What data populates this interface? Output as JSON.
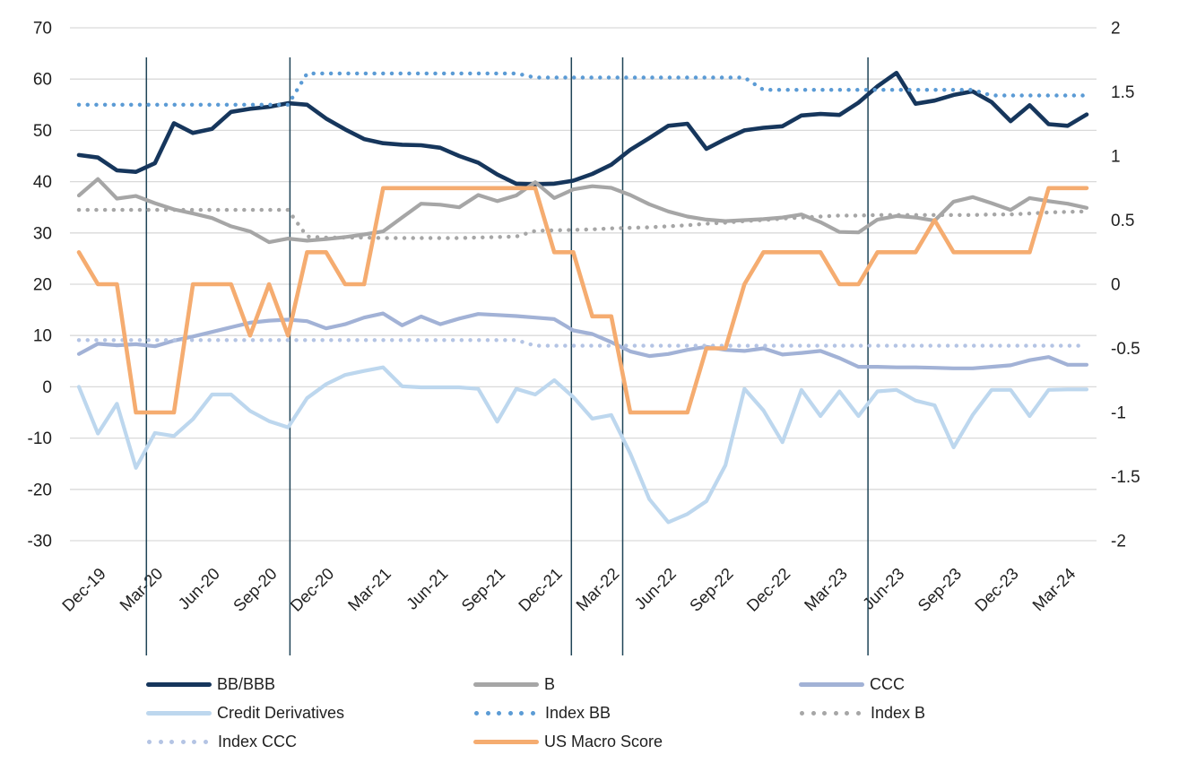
{
  "chart_data": {
    "type": "line",
    "title": "",
    "xlabel": "",
    "ylabel": "",
    "grid": "horizontal",
    "legend_position": "bottom",
    "left_axis": {
      "min": -30,
      "max": 70,
      "ticks": [
        70,
        60,
        50,
        40,
        30,
        20,
        10,
        0,
        -10,
        -20,
        -30
      ]
    },
    "right_axis": {
      "min": -2,
      "max": 2,
      "ticks": [
        2,
        1.5,
        1,
        0.5,
        0,
        -0.5,
        -1,
        -1.5,
        -2
      ]
    },
    "x_tick_every": 3,
    "months": [
      "Dec-19",
      "Jan-20",
      "Feb-20",
      "Mar-20",
      "Apr-20",
      "May-20",
      "Jun-20",
      "Jul-20",
      "Aug-20",
      "Sep-20",
      "Oct-20",
      "Nov-20",
      "Dec-20",
      "Jan-21",
      "Feb-21",
      "Mar-21",
      "Apr-21",
      "May-21",
      "Jun-21",
      "Jul-21",
      "Aug-21",
      "Sep-21",
      "Oct-21",
      "Nov-21",
      "Dec-21",
      "Jan-22",
      "Feb-22",
      "Mar-22",
      "Apr-22",
      "May-22",
      "Jun-22",
      "Jul-22",
      "Aug-22",
      "Sep-22",
      "Oct-22",
      "Nov-22",
      "Dec-22",
      "Jan-23",
      "Feb-23",
      "Mar-23",
      "Apr-23",
      "May-23",
      "Jun-23",
      "Jul-23",
      "Aug-23",
      "Sep-23",
      "Oct-23",
      "Nov-23",
      "Dec-23",
      "Jan-24",
      "Feb-24",
      "Mar-24",
      "Apr-24",
      "May-24"
    ],
    "vertical_reference_lines": [
      3.55,
      11.1,
      25.9,
      28.6,
      41.5
    ],
    "colors": {
      "grid": "#d9d9d9",
      "vline": "#1f4457",
      "text": "#1f1f1f",
      "background": "#ffffff"
    },
    "series": [
      {
        "key": "bb_bbb",
        "name": "BB/BBB",
        "color": "#16365c",
        "style": "solid",
        "width": 4.6,
        "axis": "left",
        "values": [
          45.2,
          44.7,
          42.2,
          41.9,
          43.6,
          51.4,
          49.5,
          50.3,
          53.6,
          54.2,
          54.6,
          55.3,
          55.0,
          52.3,
          50.2,
          48.3,
          47.5,
          47.2,
          47.1,
          46.6,
          45.0,
          43.7,
          41.4,
          39.6,
          39.5,
          39.6,
          40.2,
          41.5,
          43.3,
          46.2,
          48.5,
          50.9,
          51.3,
          46.4,
          48.3,
          50.0,
          50.5,
          50.8,
          52.9,
          53.2,
          53.0,
          55.4,
          58.6,
          61.2,
          55.2,
          55.8,
          56.9,
          57.6,
          55.5,
          51.8,
          54.9,
          51.2,
          50.9,
          53.1
        ]
      },
      {
        "key": "b",
        "name": "B",
        "color": "#a6a6a6",
        "style": "solid",
        "width": 4.2,
        "axis": "left",
        "values": [
          37.3,
          40.5,
          36.7,
          37.2,
          35.8,
          34.6,
          33.8,
          32.9,
          31.3,
          30.3,
          28.2,
          28.9,
          28.5,
          28.8,
          29.2,
          29.7,
          30.3,
          33.0,
          35.7,
          35.5,
          35.0,
          37.4,
          36.2,
          37.3,
          39.9,
          36.8,
          38.5,
          39.1,
          38.8,
          37.4,
          35.6,
          34.2,
          33.2,
          32.6,
          32.3,
          32.5,
          32.7,
          33.0,
          33.6,
          32.1,
          30.2,
          30.1,
          32.6,
          33.3,
          33.0,
          32.4,
          36.1,
          37.0,
          35.8,
          34.5,
          36.8,
          36.2,
          35.7,
          34.9
        ]
      },
      {
        "key": "ccc",
        "name": "CCC",
        "color": "#a2b2d6",
        "style": "solid",
        "width": 4.2,
        "axis": "left",
        "values": [
          6.4,
          8.4,
          8.1,
          8.3,
          7.9,
          9.0,
          9.8,
          10.7,
          11.6,
          12.5,
          12.9,
          13.1,
          12.8,
          11.4,
          12.2,
          13.5,
          14.3,
          12.0,
          13.7,
          12.2,
          13.3,
          14.2,
          14.0,
          13.8,
          13.5,
          13.2,
          11.0,
          10.3,
          8.7,
          6.9,
          6.0,
          6.4,
          7.2,
          7.8,
          7.2,
          7.0,
          7.5,
          6.3,
          6.6,
          7.0,
          5.6,
          3.9,
          3.9,
          3.8,
          3.8,
          3.7,
          3.6,
          3.6,
          3.9,
          4.2,
          5.2,
          5.8,
          4.3,
          4.3
        ]
      },
      {
        "key": "credit_derivatives",
        "name": "Credit Derivatives",
        "color": "#bdd7ee",
        "style": "solid",
        "width": 4.2,
        "axis": "left",
        "values": [
          0.0,
          -9.1,
          -3.3,
          -15.8,
          -9.0,
          -9.6,
          -6.3,
          -1.5,
          -1.5,
          -4.7,
          -6.7,
          -7.9,
          -2.2,
          0.5,
          2.3,
          3.1,
          3.8,
          0.1,
          -0.1,
          -0.1,
          -0.1,
          -0.4,
          -6.8,
          -0.4,
          -1.5,
          1.3,
          -2.0,
          -6.2,
          -5.5,
          -13.0,
          -21.9,
          -26.4,
          -24.8,
          -22.3,
          -15.3,
          -0.4,
          -4.6,
          -10.8,
          -0.6,
          -5.7,
          -0.9,
          -5.7,
          -0.9,
          -0.6,
          -2.7,
          -3.6,
          -11.8,
          -5.5,
          -0.6,
          -0.6,
          -5.7,
          -0.6,
          -0.5,
          -0.5
        ]
      },
      {
        "key": "index_bb",
        "name": "Index BB",
        "color": "#5b9bd5",
        "style": "dotted",
        "width": 4.4,
        "axis": "left",
        "values": [
          55,
          55,
          55,
          55,
          55,
          55,
          55,
          55,
          55,
          55,
          55,
          55,
          61.1,
          61.1,
          61.1,
          61.1,
          61.1,
          61.1,
          61.1,
          61.1,
          61.1,
          61.1,
          61.1,
          61.1,
          60.3,
          60.3,
          60.3,
          60.3,
          60.3,
          60.3,
          60.3,
          60.3,
          60.3,
          60.3,
          60.3,
          60.3,
          57.9,
          57.9,
          57.9,
          57.9,
          57.9,
          57.9,
          57.9,
          57.9,
          57.9,
          57.9,
          57.9,
          57.9,
          56.8,
          56.8,
          56.8,
          56.8,
          56.8,
          56.8
        ]
      },
      {
        "key": "index_b",
        "name": "Index B",
        "color": "#a6a6a6",
        "style": "dotted",
        "width": 4.4,
        "axis": "left",
        "values": [
          34.5,
          34.5,
          34.5,
          34.5,
          34.5,
          34.5,
          34.5,
          34.5,
          34.5,
          34.5,
          34.5,
          34.5,
          29.3,
          29.1,
          29.1,
          29.1,
          29.0,
          29.0,
          29.0,
          29.0,
          29.0,
          29.1,
          29.2,
          29.3,
          30.4,
          30.5,
          30.6,
          30.7,
          30.9,
          31.0,
          31.1,
          31.3,
          31.5,
          31.8,
          32.0,
          32.3,
          32.5,
          32.8,
          33.0,
          33.2,
          33.4,
          33.4,
          33.5,
          33.5,
          33.5,
          33.5,
          33.5,
          33.5,
          33.6,
          33.6,
          33.8,
          34.0,
          34.1,
          34.2
        ]
      },
      {
        "key": "index_ccc",
        "name": "Index CCC",
        "color": "#b4c4e4",
        "style": "dotted",
        "width": 4.4,
        "axis": "left",
        "values": [
          9.1,
          9.1,
          9.1,
          9.1,
          9.1,
          9.1,
          9.1,
          9.1,
          9.1,
          9.1,
          9.1,
          9.1,
          9.1,
          9.1,
          9.1,
          9.1,
          9.1,
          9.1,
          9.1,
          9.1,
          9.1,
          9.1,
          9.1,
          9.1,
          8.0,
          8.0,
          8.0,
          8.0,
          8.0,
          8.0,
          8.0,
          8.0,
          8.0,
          8.0,
          8.0,
          8.0,
          8.0,
          8.0,
          8.0,
          8.0,
          8.0,
          8.0,
          8.0,
          8.0,
          8.0,
          8.0,
          8.0,
          8.0,
          8.0,
          8.0,
          8.0,
          8.0,
          8.0,
          8.0
        ]
      },
      {
        "key": "us_macro_score",
        "name": "US Macro Score",
        "color": "#f5ac70",
        "style": "solid",
        "width": 4.6,
        "axis": "right",
        "values": [
          0.25,
          0,
          0,
          -1,
          -1,
          -1,
          0,
          0,
          0,
          -0.4,
          0,
          -0.4,
          0.25,
          0.25,
          0,
          0,
          0.75,
          0.75,
          0.75,
          0.75,
          0.75,
          0.75,
          0.75,
          0.75,
          0.75,
          0.25,
          0.25,
          -0.25,
          -0.25,
          -1,
          -1,
          -1,
          -1,
          -0.5,
          -0.5,
          0,
          0.25,
          0.25,
          0.25,
          0.25,
          0,
          0,
          0.25,
          0.25,
          0.25,
          0.5,
          0.25,
          0.25,
          0.25,
          0.25,
          0.25,
          0.75,
          0.75,
          0.75
        ]
      }
    ]
  }
}
